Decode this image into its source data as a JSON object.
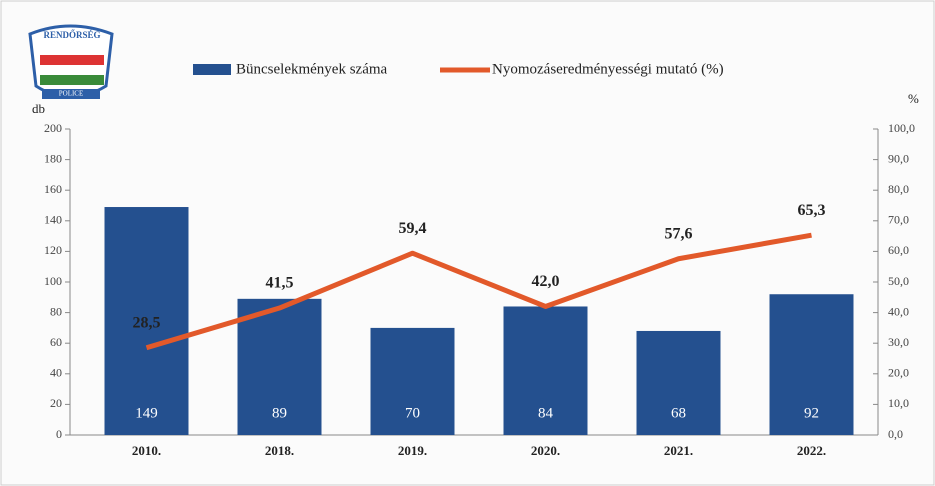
{
  "chart_data": {
    "type": "bar_line",
    "badge": [
      "RENDŐRSÉG",
      "POLICE"
    ],
    "categories": [
      "2010.",
      "2018.",
      "2019.",
      "2020.",
      "2021.",
      "2022."
    ],
    "series": [
      {
        "name": "Büncselekmények száma",
        "color": "#24508f",
        "values": [
          149,
          89,
          70,
          84,
          68,
          92
        ]
      },
      {
        "name": "Nyomozáseredményességi mutató (%)",
        "color": "#e2592a",
        "axis": "y2",
        "values": [
          28.5,
          41.5,
          59.4,
          42.0,
          57.6,
          65.3
        ],
        "value_labels": [
          "28,5",
          "41,5",
          "59,4",
          "42,0",
          "57,6",
          "65,3"
        ]
      }
    ],
    "ylabel": "db",
    "y2label": "%",
    "ylim": [
      0,
      200
    ],
    "yticks": [
      0,
      20,
      40,
      60,
      80,
      100,
      120,
      140,
      160,
      180,
      200
    ],
    "y2lim": [
      0,
      100
    ],
    "y2ticks": [
      {
        "value": 0,
        "label": "0,0"
      },
      {
        "value": 10,
        "label": "10,0"
      },
      {
        "value": 20,
        "label": "20,0"
      },
      {
        "value": 30,
        "label": "30,0"
      },
      {
        "value": 40,
        "label": "40,0"
      },
      {
        "value": 50,
        "label": "50,0"
      },
      {
        "value": 60,
        "label": "60,0"
      },
      {
        "value": 70,
        "label": "70,0"
      },
      {
        "value": 80,
        "label": "80,0"
      },
      {
        "value": 90,
        "label": "90,0"
      },
      {
        "value": 100,
        "label": "100,0"
      }
    ]
  }
}
